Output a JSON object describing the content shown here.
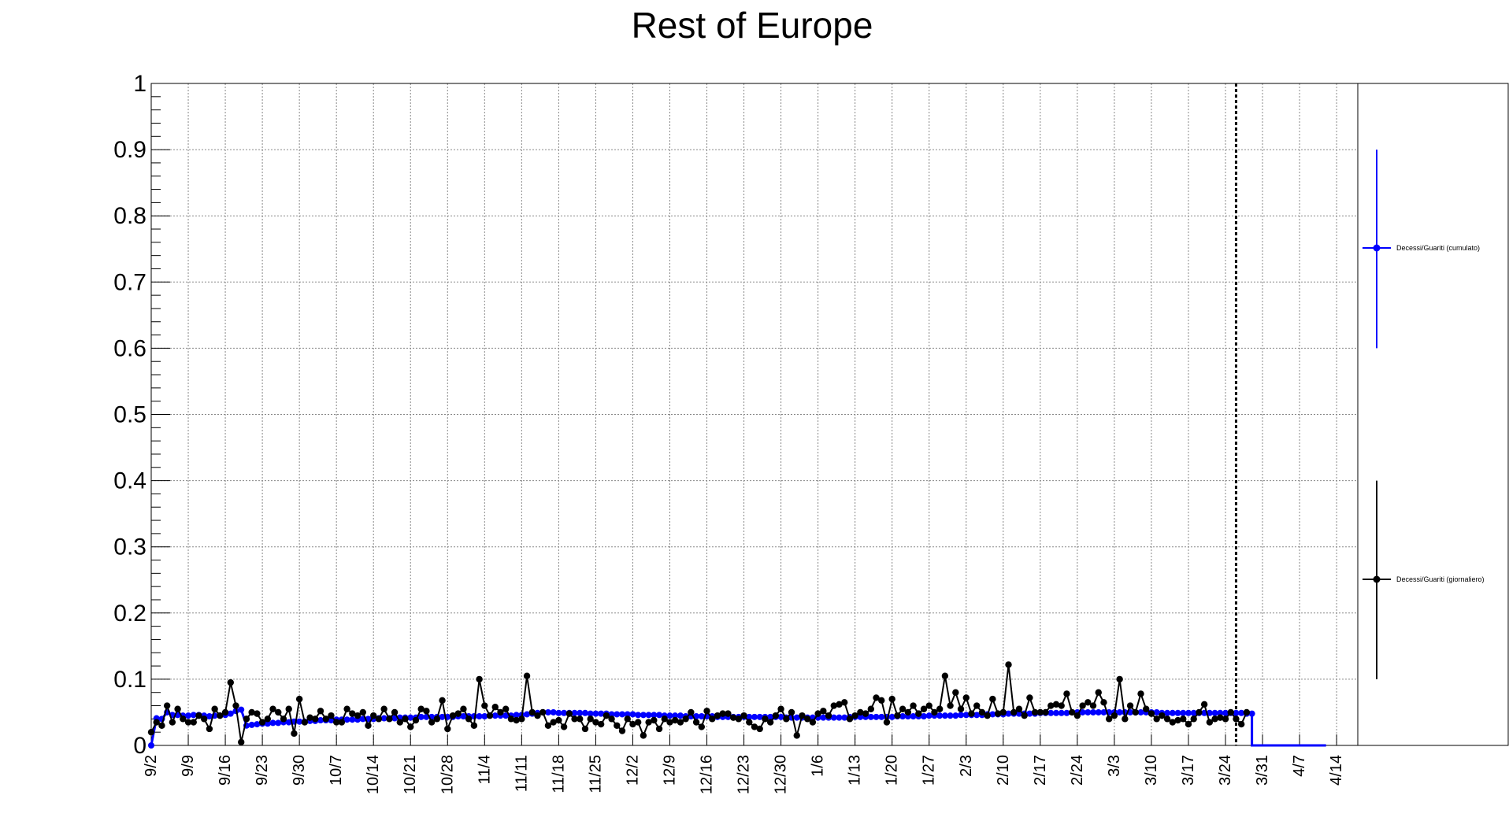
{
  "chart_data": {
    "type": "line",
    "title": "Rest of Europe",
    "xlabel": "",
    "ylabel": "",
    "ylim": [
      0,
      1
    ],
    "y_ticks": [
      "0",
      "0.1",
      "0.2",
      "0.3",
      "0.4",
      "0.5",
      "0.6",
      "0.7",
      "0.8",
      "0.9",
      "1"
    ],
    "x_range_days": [
      0,
      228
    ],
    "x_tick_labels": [
      "9/2",
      "9/9",
      "9/16",
      "9/23",
      "9/30",
      "10/7",
      "10/14",
      "10/21",
      "10/28",
      "11/4",
      "11/11",
      "11/18",
      "11/25",
      "12/2",
      "12/9",
      "12/16",
      "12/23",
      "12/30",
      "1/6",
      "1/13",
      "1/20",
      "1/27",
      "2/3",
      "2/10",
      "2/17",
      "2/24",
      "3/3",
      "3/10",
      "3/17",
      "3/24",
      "3/31",
      "4/7",
      "4/14"
    ],
    "grid": true,
    "legend_placement": "right",
    "vertical_marker_day": 205,
    "colors": {
      "cumulative": "#0000ff",
      "daily": "#000000",
      "grid": "#888888"
    },
    "series": [
      {
        "name": "Decessi/Guariti (cumulato)",
        "color": "#0000ff",
        "legend_error": [
          0.6,
          0.9
        ],
        "values": [
          0.0,
          0.041,
          0.04,
          0.05,
          0.046,
          0.046,
          0.045,
          0.045,
          0.046,
          0.046,
          0.045,
          0.044,
          0.045,
          0.045,
          0.046,
          0.048,
          0.052,
          0.054,
          0.03,
          0.031,
          0.032,
          0.033,
          0.033,
          0.034,
          0.034,
          0.035,
          0.035,
          0.036,
          0.036,
          0.036,
          0.037,
          0.037,
          0.038,
          0.038,
          0.038,
          0.039,
          0.039,
          0.039,
          0.039,
          0.039,
          0.04,
          0.04,
          0.04,
          0.041,
          0.041,
          0.041,
          0.041,
          0.042,
          0.042,
          0.042,
          0.042,
          0.043,
          0.043,
          0.043,
          0.043,
          0.043,
          0.043,
          0.043,
          0.044,
          0.044,
          0.044,
          0.044,
          0.044,
          0.044,
          0.045,
          0.045,
          0.045,
          0.045,
          0.045,
          0.046,
          0.046,
          0.047,
          0.048,
          0.049,
          0.05,
          0.05,
          0.05,
          0.049,
          0.049,
          0.049,
          0.049,
          0.049,
          0.049,
          0.048,
          0.048,
          0.048,
          0.048,
          0.047,
          0.047,
          0.047,
          0.047,
          0.047,
          0.046,
          0.046,
          0.046,
          0.046,
          0.046,
          0.045,
          0.045,
          0.045,
          0.045,
          0.044,
          0.044,
          0.044,
          0.044,
          0.044,
          0.044,
          0.043,
          0.043,
          0.043,
          0.043,
          0.043,
          0.043,
          0.043,
          0.043,
          0.043,
          0.043,
          0.043,
          0.043,
          0.043,
          0.042,
          0.042,
          0.042,
          0.042,
          0.042,
          0.042,
          0.042,
          0.042,
          0.042,
          0.042,
          0.042,
          0.042,
          0.043,
          0.043,
          0.043,
          0.043,
          0.043,
          0.043,
          0.043,
          0.043,
          0.043,
          0.044,
          0.044,
          0.044,
          0.044,
          0.044,
          0.044,
          0.045,
          0.045,
          0.045,
          0.045,
          0.045,
          0.045,
          0.046,
          0.046,
          0.046,
          0.046,
          0.046,
          0.047,
          0.047,
          0.047,
          0.047,
          0.048,
          0.048,
          0.048,
          0.048,
          0.048,
          0.048,
          0.049,
          0.049,
          0.049,
          0.049,
          0.049,
          0.049,
          0.05,
          0.05,
          0.05,
          0.05,
          0.05,
          0.05,
          0.05,
          0.05,
          0.05,
          0.05,
          0.05,
          0.05,
          0.05,
          0.05,
          0.05,
          0.05,
          0.05,
          0.049,
          0.049,
          0.049,
          0.049,
          0.049,
          0.049,
          0.049,
          0.049,
          0.049,
          0.049,
          0.049,
          0.049,
          0.049,
          0.049,
          0.049,
          0.049,
          0.048,
          0.048
        ]
      },
      {
        "name": "Decessi/Guariti (giornaliero)",
        "color": "#000000",
        "legend_error": [
          0.1,
          0.4
        ],
        "values": [
          0.02,
          0.035,
          0.03,
          0.06,
          0.035,
          0.055,
          0.04,
          0.035,
          0.035,
          0.045,
          0.04,
          0.025,
          0.055,
          0.045,
          0.05,
          0.095,
          0.06,
          0.005,
          0.04,
          0.05,
          0.048,
          0.035,
          0.04,
          0.055,
          0.05,
          0.04,
          0.055,
          0.018,
          0.07,
          0.035,
          0.042,
          0.04,
          0.052,
          0.04,
          0.045,
          0.035,
          0.035,
          0.055,
          0.048,
          0.045,
          0.05,
          0.03,
          0.045,
          0.04,
          0.055,
          0.04,
          0.05,
          0.035,
          0.04,
          0.028,
          0.038,
          0.055,
          0.052,
          0.035,
          0.04,
          0.068,
          0.025,
          0.045,
          0.048,
          0.055,
          0.04,
          0.03,
          0.1,
          0.06,
          0.045,
          0.058,
          0.05,
          0.055,
          0.04,
          0.038,
          0.04,
          0.105,
          0.05,
          0.045,
          0.05,
          0.03,
          0.035,
          0.038,
          0.028,
          0.048,
          0.04,
          0.04,
          0.025,
          0.04,
          0.035,
          0.032,
          0.045,
          0.04,
          0.03,
          0.022,
          0.04,
          0.032,
          0.035,
          0.015,
          0.035,
          0.038,
          0.025,
          0.04,
          0.035,
          0.038,
          0.035,
          0.04,
          0.05,
          0.035,
          0.028,
          0.052,
          0.04,
          0.045,
          0.048,
          0.048,
          0.042,
          0.04,
          0.045,
          0.035,
          0.028,
          0.025,
          0.04,
          0.035,
          0.045,
          0.055,
          0.04,
          0.05,
          0.015,
          0.045,
          0.04,
          0.035,
          0.048,
          0.052,
          0.045,
          0.06,
          0.062,
          0.065,
          0.04,
          0.045,
          0.05,
          0.048,
          0.055,
          0.072,
          0.068,
          0.035,
          0.07,
          0.045,
          0.055,
          0.05,
          0.06,
          0.048,
          0.055,
          0.06,
          0.05,
          0.055,
          0.105,
          0.06,
          0.08,
          0.055,
          0.072,
          0.048,
          0.06,
          0.05,
          0.045,
          0.07,
          0.048,
          0.05,
          0.122,
          0.05,
          0.055,
          0.045,
          0.072,
          0.05,
          0.05,
          0.05,
          0.06,
          0.062,
          0.06,
          0.078,
          0.05,
          0.045,
          0.06,
          0.065,
          0.06,
          0.08,
          0.065,
          0.04,
          0.045,
          0.1,
          0.04,
          0.06,
          0.05,
          0.078,
          0.055,
          0.048,
          0.04,
          0.045,
          0.04,
          0.035,
          0.038,
          0.04,
          0.032,
          0.04,
          0.05,
          0.062,
          0.035,
          0.04,
          0.042,
          0.04,
          0.05,
          0.04,
          0.032,
          0.05
        ]
      }
    ]
  }
}
